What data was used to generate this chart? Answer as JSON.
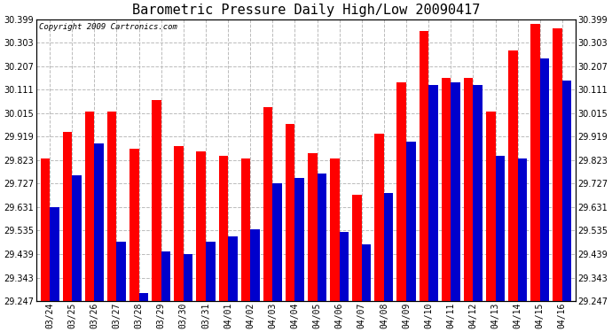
{
  "title": "Barometric Pressure Daily High/Low 20090417",
  "copyright": "Copyright 2009 Cartronics.com",
  "dates": [
    "03/24",
    "03/25",
    "03/26",
    "03/27",
    "03/28",
    "03/29",
    "03/30",
    "03/31",
    "04/01",
    "04/02",
    "04/03",
    "04/04",
    "04/05",
    "04/06",
    "04/07",
    "04/08",
    "04/09",
    "04/10",
    "04/11",
    "04/12",
    "04/13",
    "04/14",
    "04/15",
    "04/16"
  ],
  "highs": [
    29.83,
    29.94,
    30.02,
    30.02,
    29.87,
    30.07,
    29.88,
    29.86,
    29.84,
    29.83,
    30.04,
    29.97,
    29.85,
    29.83,
    29.68,
    29.93,
    30.14,
    30.35,
    30.16,
    30.16,
    30.02,
    30.27,
    30.38,
    30.36
  ],
  "lows": [
    29.63,
    29.76,
    29.89,
    29.49,
    29.28,
    29.45,
    29.44,
    29.49,
    29.51,
    29.54,
    29.73,
    29.75,
    29.77,
    29.53,
    29.48,
    29.69,
    29.9,
    30.13,
    30.14,
    30.13,
    29.84,
    29.83,
    30.24,
    30.15
  ],
  "ylim": [
    29.247,
    30.399
  ],
  "yticks": [
    29.247,
    29.343,
    29.439,
    29.535,
    29.631,
    29.727,
    29.823,
    29.919,
    30.015,
    30.111,
    30.207,
    30.303,
    30.399
  ],
  "bar_width": 0.42,
  "high_color": "#ff0000",
  "low_color": "#0000cc",
  "bg_color": "#ffffff",
  "grid_color": "#bbbbbb",
  "title_fontsize": 11,
  "tick_fontsize": 7,
  "copyright_fontsize": 6.5
}
